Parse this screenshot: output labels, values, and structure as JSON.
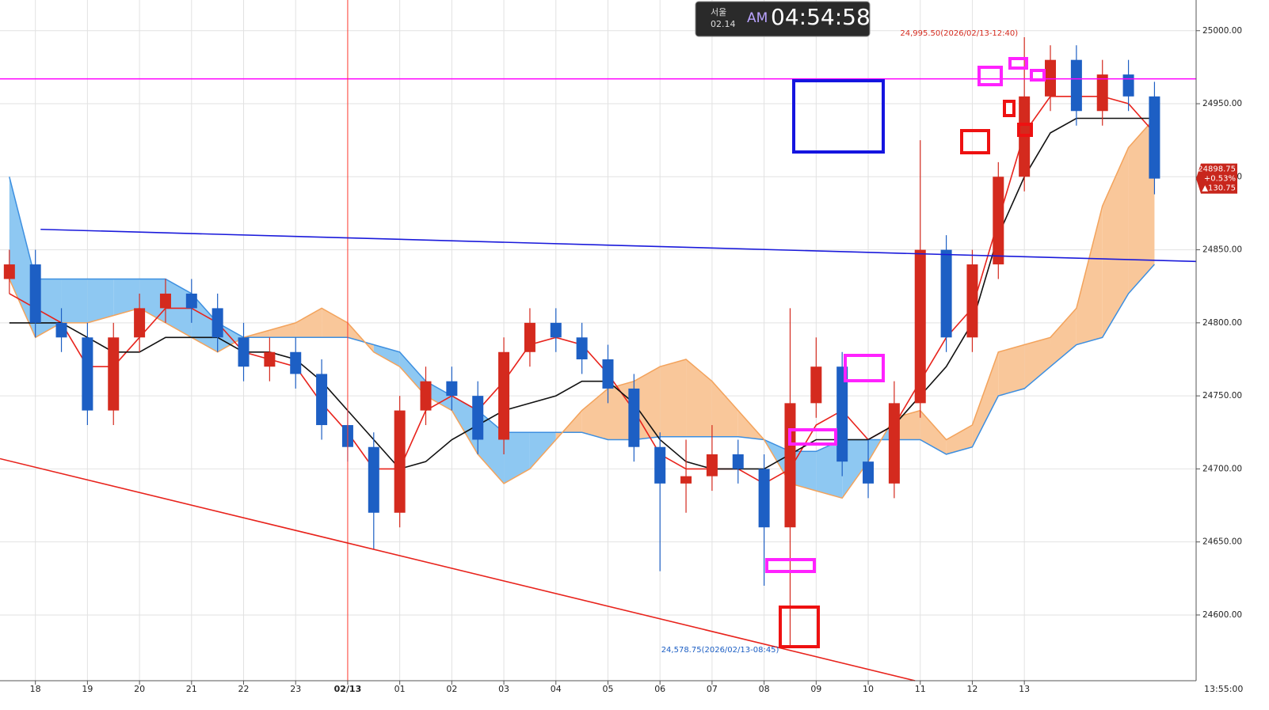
{
  "chart_data": {
    "type": "candlestick",
    "clock": {
      "city": "서울",
      "date": "02.14",
      "ampm": "AM",
      "time": "04:54:58"
    },
    "x": [
      17.5,
      18,
      18.5,
      19,
      19.5,
      20,
      20.5,
      21,
      21.5,
      22,
      22.5,
      23,
      23.5,
      24,
      24.5,
      25,
      25.5,
      26,
      26.5,
      27,
      27.5,
      28,
      28.5,
      29,
      29.5,
      30,
      30.5,
      31,
      31.5,
      32,
      32.5,
      33,
      33.5,
      34,
      34.5,
      35,
      35.5,
      36,
      36.5,
      37,
      37.5,
      38,
      38.5,
      39,
      39.5
    ],
    "open": [
      24830,
      24840,
      24800,
      24790,
      24740,
      24790,
      24810,
      24820,
      24810,
      24790,
      24770,
      24780,
      24765,
      24730,
      24715,
      24670,
      24740,
      24760,
      24750,
      24720,
      24780,
      24800,
      24790,
      24775,
      24755,
      24715,
      24690,
      24695,
      24710,
      24700,
      24660,
      24745,
      24770,
      24705,
      24690,
      24745,
      24850,
      24790,
      24840,
      24900,
      24955,
      24980,
      24945,
      24970,
      24955
    ],
    "high": [
      24850,
      24850,
      24810,
      24800,
      24800,
      24820,
      24830,
      24830,
      24820,
      24800,
      24790,
      24790,
      24775,
      24740,
      24725,
      24750,
      24770,
      24770,
      24760,
      24790,
      24810,
      24810,
      24800,
      24785,
      24765,
      24725,
      24720,
      24730,
      24720,
      24710,
      24810,
      24790,
      24780,
      24720,
      24760,
      24925,
      24860,
      24850,
      24910,
      24995.5,
      24990,
      24990,
      24980,
      24980,
      24965
    ],
    "low": [
      24820,
      24790,
      24780,
      24730,
      24730,
      24780,
      24800,
      24800,
      24780,
      24760,
      24760,
      24755,
      24720,
      24705,
      24645,
      24660,
      24730,
      24740,
      24710,
      24710,
      24770,
      24780,
      24765,
      24745,
      24705,
      24630,
      24670,
      24685,
      24690,
      24620,
      24578.75,
      24735,
      24695,
      24680,
      24680,
      24735,
      24780,
      24780,
      24830,
      24890,
      24945,
      24935,
      24935,
      24945,
      24888
    ],
    "close": [
      24840,
      24800,
      24790,
      24740,
      24790,
      24810,
      24820,
      24810,
      24790,
      24770,
      24780,
      24765,
      24730,
      24715,
      24670,
      24740,
      24760,
      24750,
      24720,
      24780,
      24800,
      24790,
      24775,
      24755,
      24715,
      24690,
      24695,
      24710,
      24700,
      24660,
      24745,
      24770,
      24705,
      24690,
      24745,
      24850,
      24790,
      24840,
      24900,
      24955,
      24980,
      24945,
      24970,
      24955,
      24898.75
    ],
    "up_color": "#d42a1e",
    "down_color": "#1d5fc4",
    "series": [
      {
        "color": "#e8231c",
        "values": [
          24820,
          24810,
          24800,
          24770,
          24770,
          24790,
          24810,
          24810,
          24800,
          24780,
          24775,
          24770,
          24745,
          24725,
          24700,
          24700,
          24740,
          24750,
          24740,
          24760,
          24785,
          24790,
          24785,
          24765,
          24740,
          24710,
          24700,
          24700,
          24700,
          24690,
          24700,
          24730,
          24740,
          24720,
          24730,
          24760,
          24790,
          24810,
          24870,
          24930,
          24955,
          24955,
          24955,
          24950,
          24930
        ]
      },
      {
        "color": "#111111",
        "values": [
          24800,
          24800,
          24800,
          24790,
          24780,
          24780,
          24790,
          24790,
          24790,
          24780,
          24780,
          24775,
          24760,
          24740,
          24720,
          24700,
          24705,
          24720,
          24730,
          24740,
          24745,
          24750,
          24760,
          24760,
          24745,
          24720,
          24705,
          24700,
          24700,
          24700,
          24710,
          24720,
          24720,
          24720,
          24730,
          24750,
          24770,
          24800,
          24860,
          24900,
          24930,
          24940,
          24940,
          24940,
          24940
        ]
      }
    ],
    "cloud": {
      "a_color": "#3d8fe0",
      "b_color": "#f3a35c",
      "a_fill": "#8ec8f2",
      "b_fill": "#f9c79a",
      "a": [
        24900,
        24830,
        24830,
        24830,
        24830,
        24830,
        24830,
        24820,
        24800,
        24790,
        24790,
        24790,
        24790,
        24790,
        24785,
        24780,
        24760,
        24750,
        24740,
        24725,
        24725,
        24725,
        24725,
        24720,
        24720,
        24722,
        24722,
        24722,
        24722,
        24720,
        24712,
        24712,
        24720,
        24720,
        24720,
        24720,
        24710,
        24715,
        24750,
        24755,
        24770,
        24785,
        24790,
        24820,
        24840
      ],
      "b": [
        24830,
        24790,
        24800,
        24800,
        24805,
        24810,
        24800,
        24790,
        24780,
        24790,
        24795,
        24800,
        24810,
        24800,
        24780,
        24770,
        24750,
        24740,
        24710,
        24690,
        24700,
        24720,
        24740,
        24755,
        24760,
        24770,
        24775,
        24760,
        24740,
        24720,
        24690,
        24685,
        24680,
        24705,
        24735,
        24740,
        24720,
        24730,
        24780,
        24785,
        24790,
        24810,
        24880,
        24920,
        24940
      ]
    },
    "hline": {
      "value": 24967,
      "color": "#ff00ff"
    },
    "vline": {
      "value": 24,
      "color": "#ff3b30"
    },
    "trendlines": [
      {
        "color": "#1a1adb",
        "x": [
          18.1,
          40.3
        ],
        "values": [
          24864,
          24842
        ]
      },
      {
        "color": "#e8231c",
        "x": [
          17.32,
          34.9
        ],
        "values": [
          24707,
          24555
        ]
      }
    ],
    "annotations": [
      {
        "text": "24,995.50(2026/02/13-12:40)",
        "color": "#d42a1e"
      },
      {
        "text": "24,578.75(2026/02/13-08:45)",
        "color": "#1d5fc4"
      }
    ],
    "price_tag": {
      "price": "24898.75",
      "change_pct": "+0.53%",
      "change": "▲130.75"
    },
    "xlim": [
      17.32,
      40.3
    ],
    "ylim": [
      24555,
      25021
    ],
    "xticks": [
      {
        "value": 18,
        "label": "18"
      },
      {
        "value": 19,
        "label": "19"
      },
      {
        "value": 20,
        "label": "20"
      },
      {
        "value": 21,
        "label": "21"
      },
      {
        "value": 22,
        "label": "22"
      },
      {
        "value": 23,
        "label": "23"
      },
      {
        "value": 24,
        "label": "02/13"
      },
      {
        "value": 25,
        "label": "01"
      },
      {
        "value": 26,
        "label": "02"
      },
      {
        "value": 27,
        "label": "03"
      },
      {
        "value": 28,
        "label": "04"
      },
      {
        "value": 29,
        "label": "05"
      },
      {
        "value": 30,
        "label": "06"
      },
      {
        "value": 31,
        "label": "07"
      },
      {
        "value": 32,
        "label": "08"
      },
      {
        "value": 33,
        "label": "09"
      },
      {
        "value": 34,
        "label": "10"
      },
      {
        "value": 35,
        "label": "11"
      },
      {
        "value": 36,
        "label": "12"
      },
      {
        "value": 37,
        "label": "13"
      }
    ],
    "x_end_label": "13:55:00",
    "yticks": [
      {
        "value": 24600,
        "label": "24600.00"
      },
      {
        "value": 24650,
        "label": "24650.00"
      },
      {
        "value": 24700,
        "label": "24700.00"
      },
      {
        "value": 24750,
        "label": "24750.00"
      },
      {
        "value": 24800,
        "label": "24800.00"
      },
      {
        "value": 24850,
        "label": "24850.00"
      },
      {
        "value": 24900,
        "label": "24900.00"
      },
      {
        "value": 24950,
        "label": "24950.00"
      },
      {
        "value": 25000,
        "label": "25000.00"
      }
    ],
    "grid": true
  }
}
